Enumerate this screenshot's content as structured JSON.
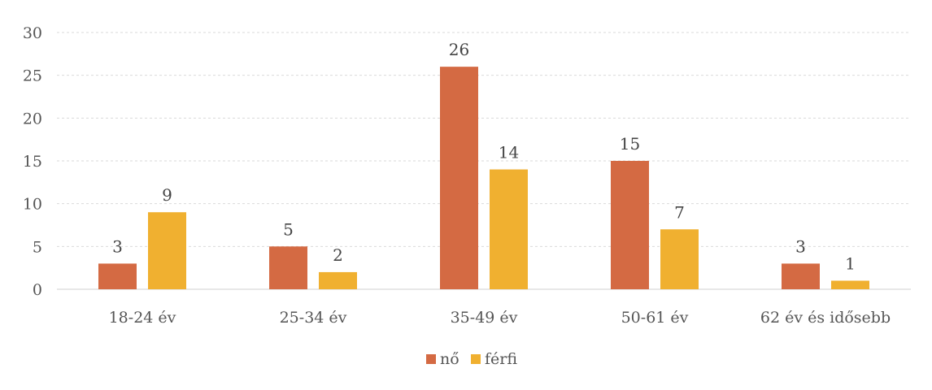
{
  "chart_data": {
    "type": "bar",
    "title": "",
    "categories": [
      "18-24 év",
      "25-34 év",
      "35-49 év",
      "50-61 év",
      "62 év és idősebb"
    ],
    "series": [
      {
        "name": "nő",
        "color": "#d46a43",
        "values": [
          3,
          5,
          26,
          15,
          3
        ]
      },
      {
        "name": "férfi",
        "color": "#f0b030",
        "values": [
          9,
          2,
          14,
          7,
          1
        ]
      }
    ],
    "ylim": [
      0,
      30
    ],
    "yticks": [
      0,
      5,
      10,
      15,
      20,
      25,
      30
    ],
    "grid": true,
    "legend": "bottom"
  }
}
